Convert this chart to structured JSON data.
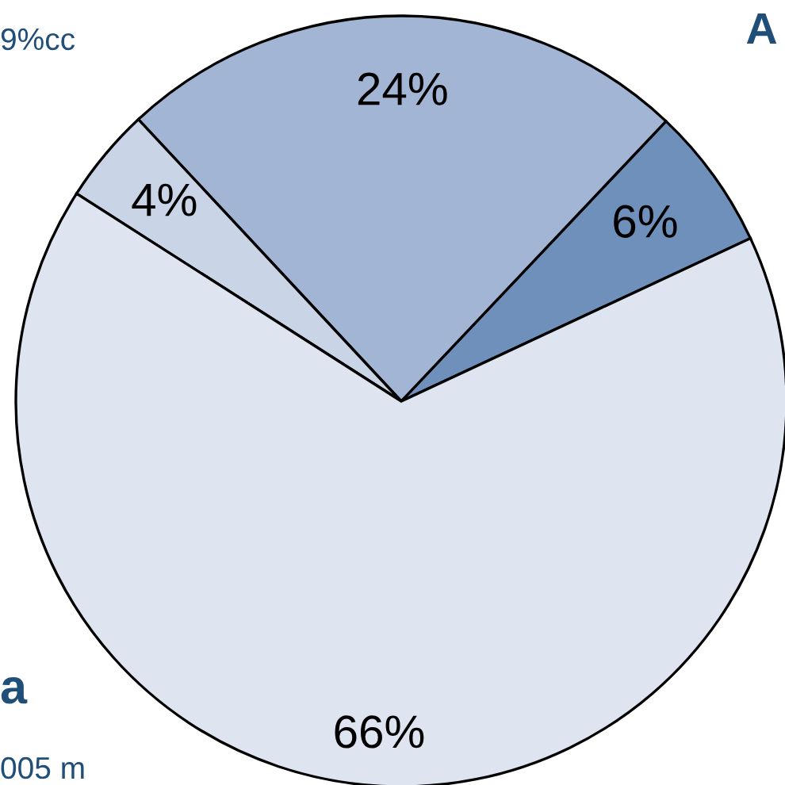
{
  "chart_data": {
    "type": "pie",
    "categories": [
      null,
      null,
      null,
      null
    ],
    "values": [
      6,
      24,
      4,
      66
    ],
    "value_labels": [
      "6%",
      "24%",
      "4%",
      "66%"
    ],
    "colors": [
      "#7090bc",
      "#a3b5d4",
      "#c9d4e7",
      "#dfe5f0"
    ],
    "annotations": [
      "9%cc",
      "A",
      "a",
      "005 m"
    ]
  }
}
